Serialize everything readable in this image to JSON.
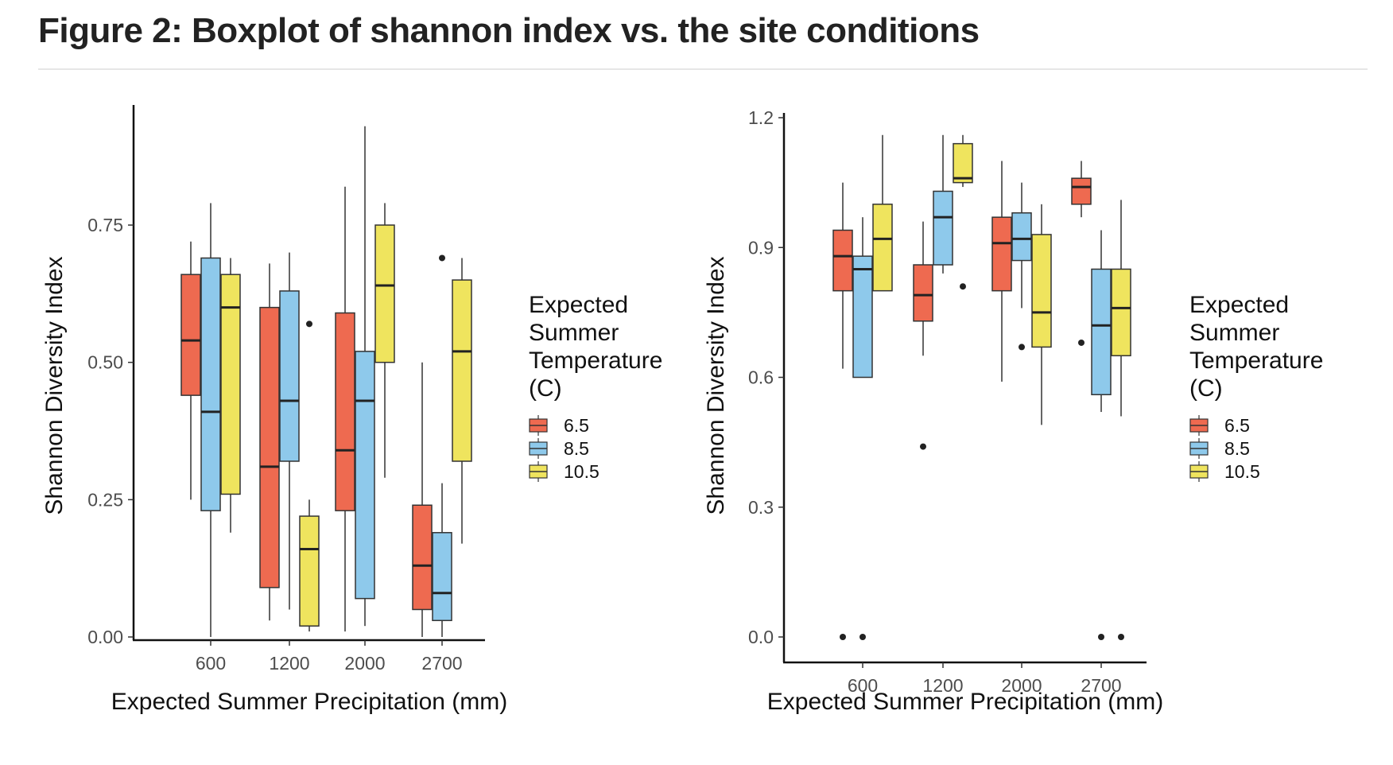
{
  "figure_title": "Figure 2: Boxplot of shannon index vs. the site conditions",
  "chart_data": [
    {
      "type": "boxplot",
      "xlabel": "Expected Summer Precipitation (mm)",
      "ylabel": "Shannon Diversity Index",
      "ylim": [
        0,
        0.96
      ],
      "yticks": [
        0,
        0.25,
        0.5,
        0.75
      ],
      "ytick_labels": [
        "0.00",
        "0.25",
        "0.50",
        "0.75"
      ],
      "categories": [
        "600",
        "1200",
        "2000",
        "2700"
      ],
      "grid": false,
      "legend": {
        "title": [
          "Expected",
          "Summer",
          "Temperature",
          "(C)"
        ],
        "position": "right",
        "entries": [
          "6.5",
          "8.5",
          "10.5"
        ]
      },
      "series": [
        {
          "name": "6.5",
          "color": "#EE6A50",
          "boxes": [
            {
              "min": 0.25,
              "q1": 0.44,
              "median": 0.54,
              "q3": 0.66,
              "max": 0.72,
              "outliers": []
            },
            {
              "min": 0.03,
              "q1": 0.09,
              "median": 0.31,
              "q3": 0.6,
              "max": 0.68,
              "outliers": []
            },
            {
              "min": 0.01,
              "q1": 0.23,
              "median": 0.34,
              "q3": 0.59,
              "max": 0.82,
              "outliers": []
            },
            {
              "min": 0.0,
              "q1": 0.05,
              "median": 0.13,
              "q3": 0.24,
              "max": 0.5,
              "outliers": []
            }
          ]
        },
        {
          "name": "8.5",
          "color": "#8EC9EB",
          "boxes": [
            {
              "min": 0.0,
              "q1": 0.23,
              "median": 0.41,
              "q3": 0.69,
              "max": 0.79,
              "outliers": []
            },
            {
              "min": 0.05,
              "q1": 0.32,
              "median": 0.43,
              "q3": 0.63,
              "max": 0.7,
              "outliers": []
            },
            {
              "min": 0.02,
              "q1": 0.07,
              "median": 0.43,
              "q3": 0.52,
              "max": 0.93,
              "outliers": []
            },
            {
              "min": 0.0,
              "q1": 0.03,
              "median": 0.08,
              "q3": 0.19,
              "max": 0.28,
              "outliers": [
                0.69
              ]
            }
          ]
        },
        {
          "name": "10.5",
          "color": "#EFE45E",
          "boxes": [
            {
              "min": 0.19,
              "q1": 0.26,
              "median": 0.6,
              "q3": 0.66,
              "max": 0.69,
              "outliers": []
            },
            {
              "min": 0.01,
              "q1": 0.02,
              "median": 0.16,
              "q3": 0.22,
              "max": 0.25,
              "outliers": [
                0.57
              ]
            },
            {
              "min": 0.29,
              "q1": 0.5,
              "median": 0.64,
              "q3": 0.75,
              "max": 0.79,
              "outliers": []
            },
            {
              "min": 0.17,
              "q1": 0.32,
              "median": 0.52,
              "q3": 0.65,
              "max": 0.69,
              "outliers": []
            }
          ]
        }
      ]
    },
    {
      "type": "boxplot",
      "xlabel": "Expected Summer Precipitation (mm)",
      "ylabel": "Shannon Diversity Index",
      "ylim": [
        0,
        1.2
      ],
      "yticks": [
        0,
        0.3,
        0.6,
        0.9,
        1.2
      ],
      "ytick_labels": [
        "0.0",
        "0.3",
        "0.6",
        "0.9",
        "1.2"
      ],
      "categories": [
        "600",
        "1200",
        "2000",
        "2700"
      ],
      "grid": false,
      "legend": {
        "title": [
          "Expected",
          "Summer",
          "Temperature",
          "(C)"
        ],
        "position": "right",
        "entries": [
          "6.5",
          "8.5",
          "10.5"
        ]
      },
      "series": [
        {
          "name": "6.5",
          "color": "#EE6A50",
          "boxes": [
            {
              "min": 0.62,
              "q1": 0.8,
              "median": 0.88,
              "q3": 0.94,
              "max": 1.05,
              "outliers": [
                0.0
              ]
            },
            {
              "min": 0.65,
              "q1": 0.73,
              "median": 0.79,
              "q3": 0.86,
              "max": 0.96,
              "outliers": [
                0.44
              ]
            },
            {
              "min": 0.59,
              "q1": 0.8,
              "median": 0.91,
              "q3": 0.97,
              "max": 1.1,
              "outliers": []
            },
            {
              "min": 0.97,
              "q1": 1.0,
              "median": 1.04,
              "q3": 1.06,
              "max": 1.1,
              "outliers": [
                0.68
              ]
            }
          ]
        },
        {
          "name": "8.5",
          "color": "#8EC9EB",
          "boxes": [
            {
              "min": 0.6,
              "q1": 0.6,
              "median": 0.85,
              "q3": 0.88,
              "max": 0.97,
              "outliers": [
                0.0
              ]
            },
            {
              "min": 0.84,
              "q1": 0.86,
              "median": 0.97,
              "q3": 1.03,
              "max": 1.16,
              "outliers": []
            },
            {
              "min": 0.76,
              "q1": 0.87,
              "median": 0.92,
              "q3": 0.98,
              "max": 1.05,
              "outliers": [
                0.67
              ]
            },
            {
              "min": 0.52,
              "q1": 0.56,
              "median": 0.72,
              "q3": 0.85,
              "max": 0.94,
              "outliers": [
                0.0
              ]
            }
          ]
        },
        {
          "name": "10.5",
          "color": "#EFE45E",
          "boxes": [
            {
              "min": 0.8,
              "q1": 0.8,
              "median": 0.92,
              "q3": 1.0,
              "max": 1.16,
              "outliers": []
            },
            {
              "min": 1.04,
              "q1": 1.05,
              "median": 1.06,
              "q3": 1.14,
              "max": 1.16,
              "outliers": [
                0.81
              ]
            },
            {
              "min": 0.49,
              "q1": 0.67,
              "median": 0.75,
              "q3": 0.93,
              "max": 1.0,
              "outliers": []
            },
            {
              "min": 0.51,
              "q1": 0.65,
              "median": 0.76,
              "q3": 0.85,
              "max": 1.01,
              "outliers": [
                0.0
              ]
            }
          ]
        }
      ]
    }
  ]
}
